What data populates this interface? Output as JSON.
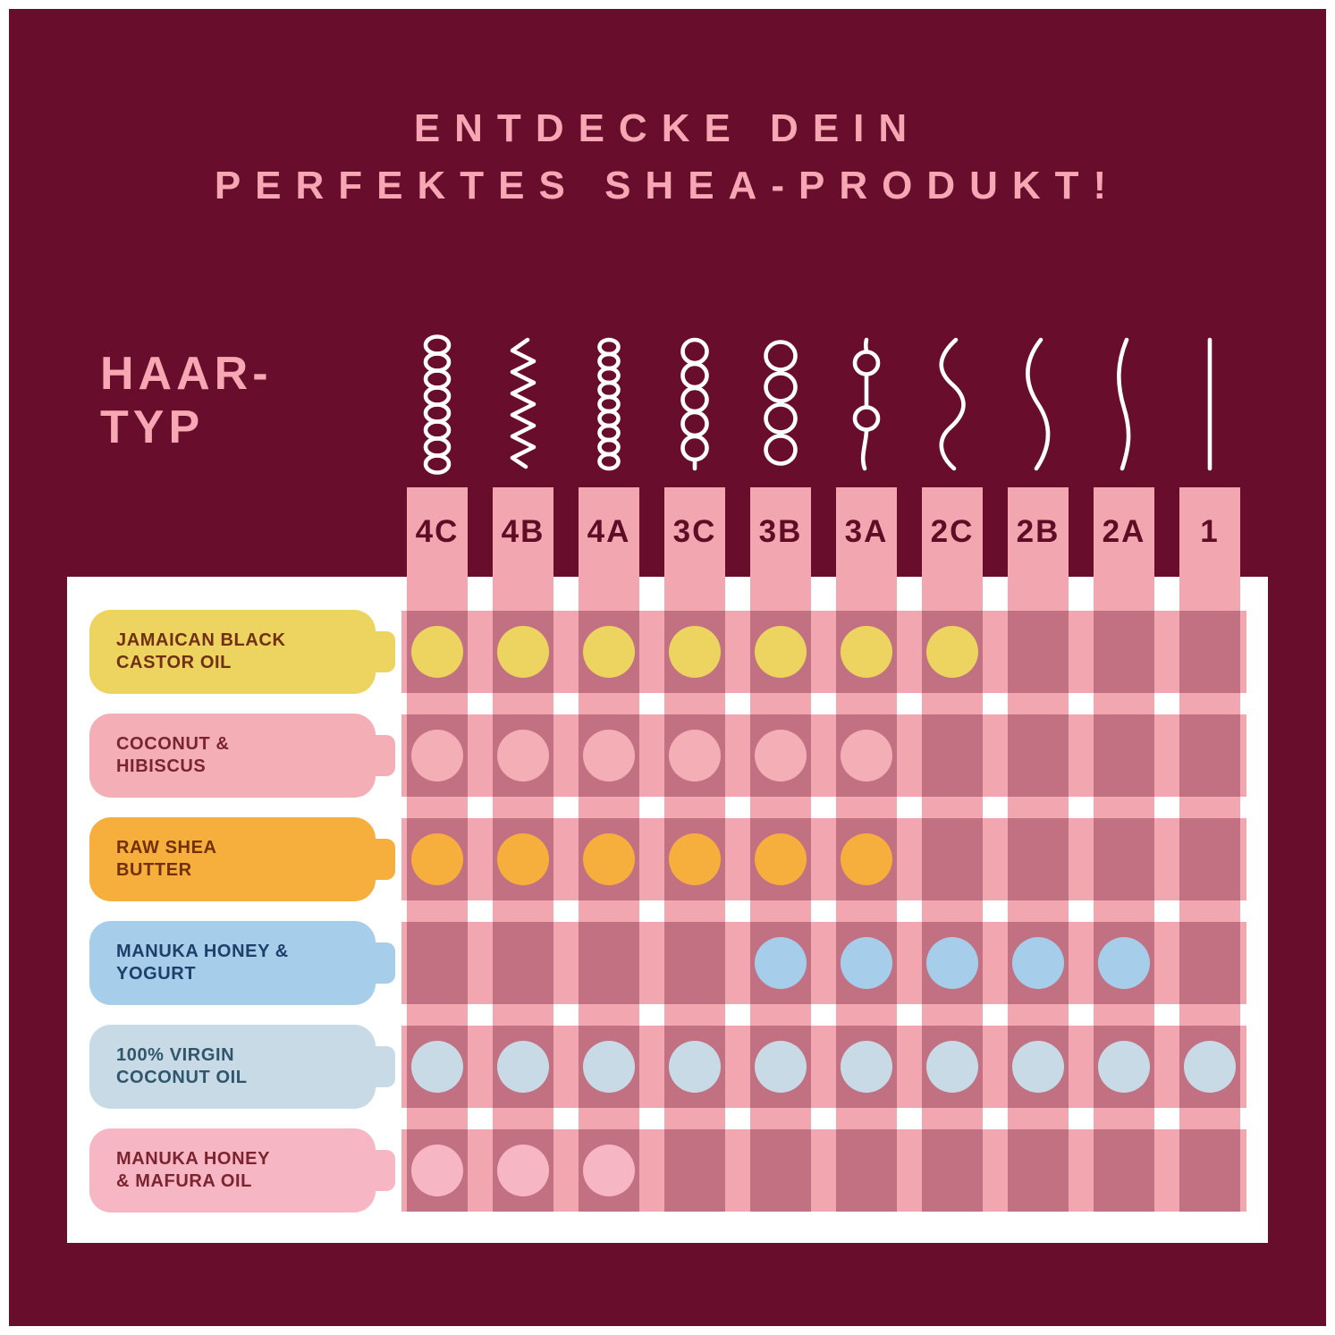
{
  "title": {
    "line1": "ENTDECKE DEIN",
    "line2": "PERFEKTES SHEA-PRODUKT!"
  },
  "axis_label": {
    "line1": "HAAR-",
    "line2": "TYP"
  },
  "hair_types": [
    {
      "id": "4C",
      "label": "4C",
      "icon": "coil-tight-icon"
    },
    {
      "id": "4B",
      "label": "4B",
      "icon": "zigzag-icon"
    },
    {
      "id": "4A",
      "label": "4A",
      "icon": "coil-icon"
    },
    {
      "id": "3C",
      "label": "3C",
      "icon": "loops-tight-icon"
    },
    {
      "id": "3B",
      "label": "3B",
      "icon": "loops-icon"
    },
    {
      "id": "3A",
      "label": "3A",
      "icon": "loops-loose-icon"
    },
    {
      "id": "2C",
      "label": "2C",
      "icon": "wave-strong-icon"
    },
    {
      "id": "2B",
      "label": "2B",
      "icon": "wave-icon"
    },
    {
      "id": "2A",
      "label": "2A",
      "icon": "wave-soft-icon"
    },
    {
      "id": "1",
      "label": "1",
      "icon": "straight-icon"
    }
  ],
  "products": [
    {
      "name_line1": "JAMAICAN BLACK",
      "name_line2": "CASTOR OIL",
      "color": "#EDD35F",
      "text_color": "#6F3013",
      "hair_types": [
        "4C",
        "4B",
        "4A",
        "3C",
        "3B",
        "3A",
        "2C"
      ]
    },
    {
      "name_line1": "COCONUT &",
      "name_line2": "HIBISCUS",
      "color": "#F4AEB6",
      "text_color": "#7A2430",
      "hair_types": [
        "4C",
        "4B",
        "4A",
        "3C",
        "3B",
        "3A"
      ]
    },
    {
      "name_line1": "RAW SHEA",
      "name_line2": "BUTTER",
      "color": "#F6AE3C",
      "text_color": "#713008",
      "hair_types": [
        "4C",
        "4B",
        "4A",
        "3C",
        "3B",
        "3A"
      ]
    },
    {
      "name_line1": "MANUKA HONEY &",
      "name_line2": "YOGURT",
      "color": "#A6CDE9",
      "text_color": "#1D3F69",
      "hair_types": [
        "3B",
        "3A",
        "2C",
        "2B",
        "2A"
      ]
    },
    {
      "name_line1": "100% VIRGIN",
      "name_line2": "COCONUT OIL",
      "color": "#C7DAE6",
      "text_color": "#2F566B",
      "hair_types": [
        "4C",
        "4B",
        "4A",
        "3C",
        "3B",
        "3A",
        "2C",
        "2B",
        "2A",
        "1"
      ]
    },
    {
      "name_line1": "MANUKA HONEY",
      "name_line2": "& MAFURA OIL",
      "color": "#F7B6C3",
      "text_color": "#7A2430",
      "hair_types": [
        "4C",
        "4B",
        "4A"
      ]
    }
  ],
  "colors": {
    "background": "#680D2B",
    "border": "#FFFFFF",
    "title_text": "#F7A6B4",
    "header_text": "#5F0C26",
    "grid_stripe": "#F1A6B0",
    "grid_band": "#F1A6B0",
    "cell_overlay": "rgba(104,13,43,0.34)",
    "panel": "#FFFFFF",
    "icon_stroke": "#FFFFFF"
  },
  "chart_data": {
    "type": "table",
    "title": "ENTDECKE DEIN PERFEKTES SHEA-PRODUKT!",
    "row_axis_label": "HAAR-TYP",
    "columns": [
      "4C",
      "4B",
      "4A",
      "3C",
      "3B",
      "3A",
      "2C",
      "2B",
      "2A",
      "1"
    ],
    "rows": [
      {
        "product": "JAMAICAN BLACK CASTOR OIL",
        "suitable_for": [
          "4C",
          "4B",
          "4A",
          "3C",
          "3B",
          "3A",
          "2C"
        ]
      },
      {
        "product": "COCONUT & HIBISCUS",
        "suitable_for": [
          "4C",
          "4B",
          "4A",
          "3C",
          "3B",
          "3A"
        ]
      },
      {
        "product": "RAW SHEA BUTTER",
        "suitable_for": [
          "4C",
          "4B",
          "4A",
          "3C",
          "3B",
          "3A"
        ]
      },
      {
        "product": "MANUKA HONEY & YOGURT",
        "suitable_for": [
          "3B",
          "3A",
          "2C",
          "2B",
          "2A"
        ]
      },
      {
        "product": "100% VIRGIN COCONUT OIL",
        "suitable_for": [
          "4C",
          "4B",
          "4A",
          "3C",
          "3B",
          "3A",
          "2C",
          "2B",
          "2A",
          "1"
        ]
      },
      {
        "product": "MANUKA HONEY & MAFURA OIL",
        "suitable_for": [
          "4C",
          "4B",
          "4A"
        ]
      }
    ],
    "legend_position": "none",
    "grid": true
  }
}
